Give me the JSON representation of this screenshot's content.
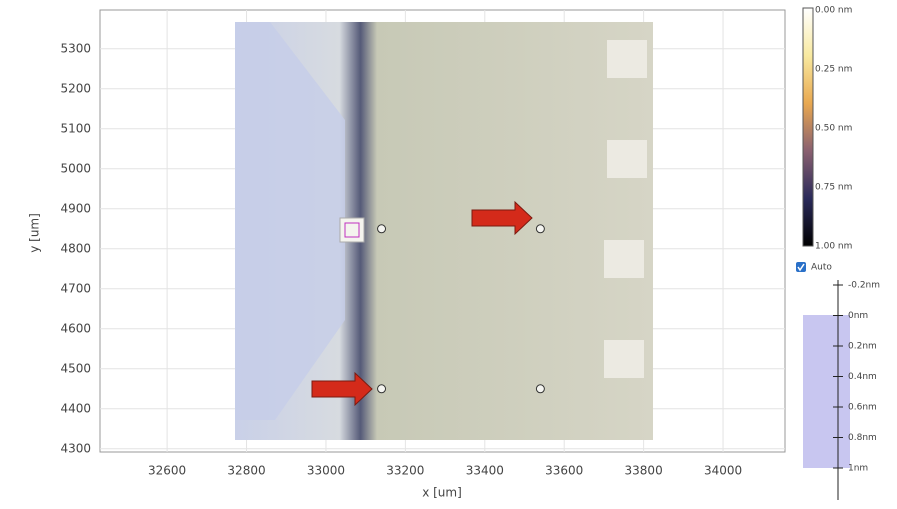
{
  "plot": {
    "x_label": "x [um]",
    "y_label": "y [um]",
    "xlim": [
      32431,
      34156
    ],
    "ylim": [
      4292,
      5397
    ],
    "xticks": [
      32600,
      32800,
      33000,
      33200,
      33400,
      33600,
      33800,
      34000
    ],
    "yticks": [
      4300,
      4400,
      4500,
      4600,
      4700,
      4800,
      4900,
      5000,
      5100,
      5200,
      5300
    ],
    "markers": {
      "x": [
        33140,
        33540,
        33140,
        33540
      ],
      "y": [
        4850,
        4850,
        4450,
        4450
      ]
    }
  },
  "colorbar": {
    "labels": [
      "0.00 nm",
      "0.25 nm",
      "0.50 nm",
      "0.75 nm",
      "1.00 nm"
    ]
  },
  "auto_checkbox": {
    "label": "Auto",
    "checked": true
  },
  "depth_scale": {
    "labels": [
      "-0.2nm",
      "0nm",
      "0.2nm",
      "0.4nm",
      "0.6nm",
      "0.8nm",
      "1nm"
    ]
  }
}
